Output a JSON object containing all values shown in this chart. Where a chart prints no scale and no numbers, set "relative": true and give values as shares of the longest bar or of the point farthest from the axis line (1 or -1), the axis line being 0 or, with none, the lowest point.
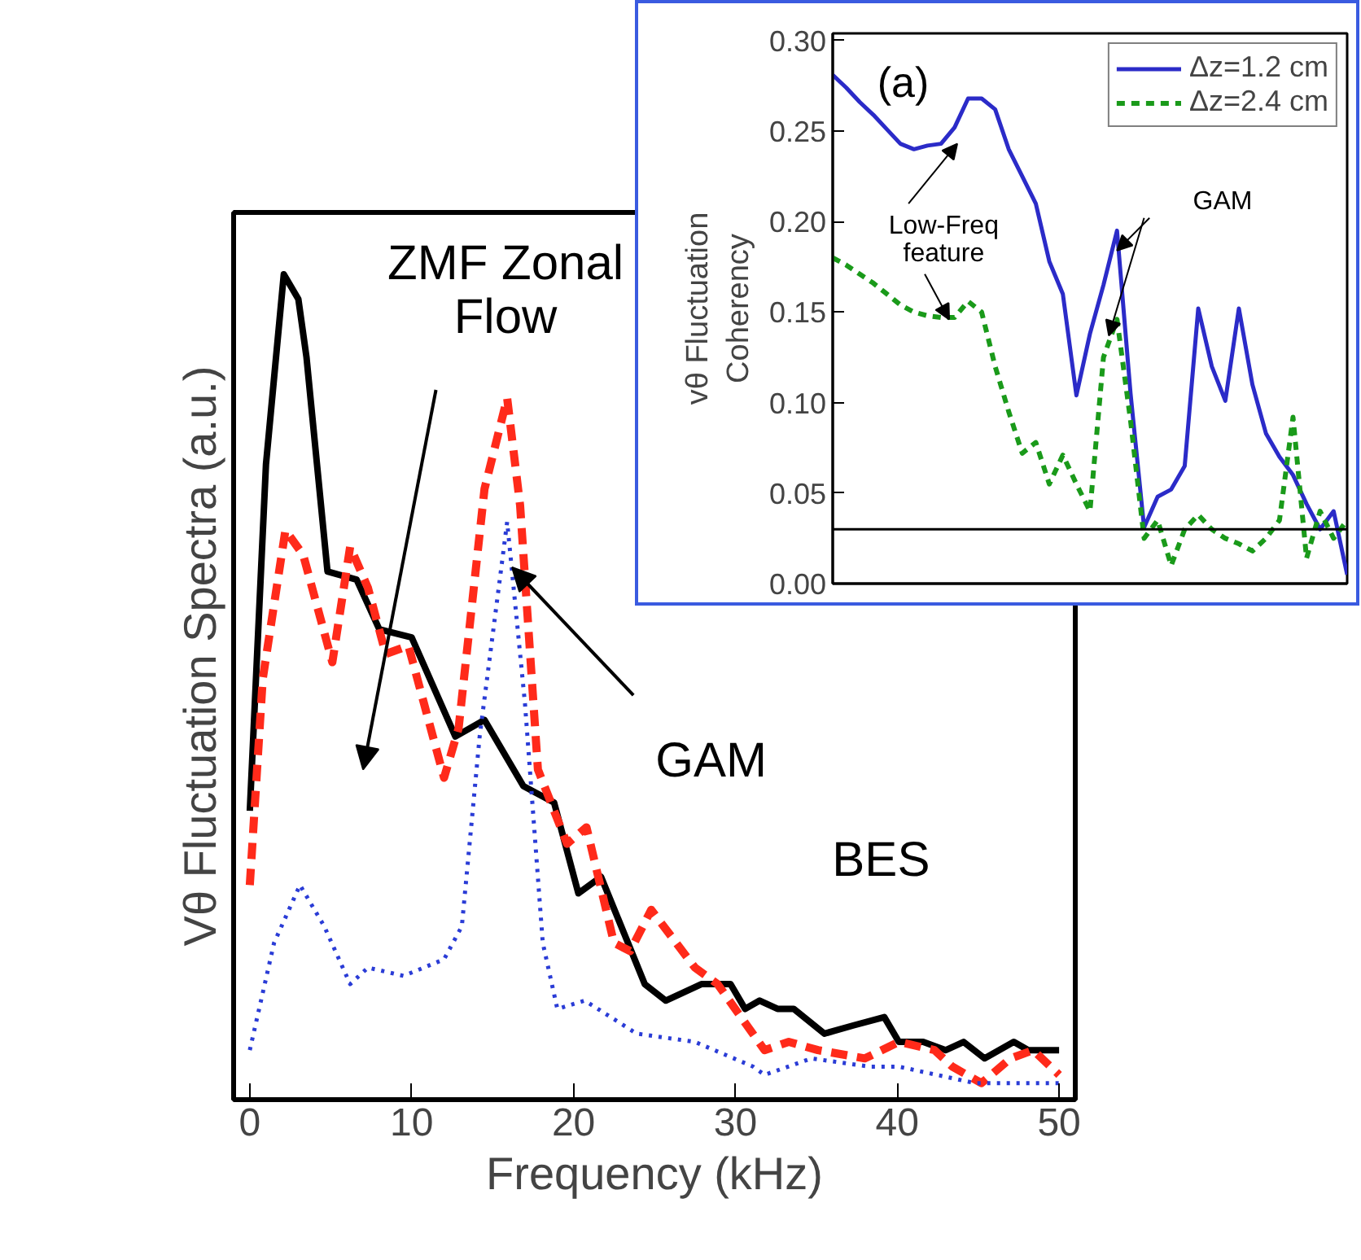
{
  "chart_data": [
    {
      "type": "line",
      "xlabel": "Frequency (kHz)",
      "ylabel": "Vθ Fluctuation Spectra (a.u.)",
      "relative": true,
      "xlim": [
        -1,
        51
      ],
      "xticks": [
        0,
        10,
        20,
        30,
        40,
        50
      ],
      "tick_labels": "x",
      "grid": false,
      "marker": "none",
      "annotations": [
        "ZMF Zonal\nFlow",
        "GAM",
        "BES"
      ],
      "series": [
        {
          "color": "#000000",
          "line_style": "solid",
          "x": [
            0,
            1.0,
            2.1,
            3.0,
            3.5,
            4.8,
            6.6,
            8.0,
            10.0,
            12.7,
            14.5,
            16.9,
            18.8,
            20.3,
            21.7,
            24.4,
            25.7,
            27.9,
            29.7,
            30.6,
            31.5,
            32.6,
            33.6,
            35.5,
            37.3,
            39.2,
            40.1,
            41.6,
            43.0,
            44.1,
            45.4,
            47.2,
            48.1,
            50
          ],
          "values": [
            0.35,
            0.77,
            1.0,
            0.97,
            0.9,
            0.64,
            0.63,
            0.57,
            0.56,
            0.44,
            0.46,
            0.38,
            0.36,
            0.25,
            0.27,
            0.14,
            0.12,
            0.14,
            0.14,
            0.11,
            0.12,
            0.11,
            0.11,
            0.08,
            0.09,
            0.1,
            0.07,
            0.07,
            0.06,
            0.07,
            0.05,
            0.07,
            0.06,
            0.06
          ]
        },
        {
          "color": "#ff2a1a",
          "line_style": "dashed",
          "x": [
            0,
            0.8,
            2.2,
            3.3,
            5.1,
            6.2,
            7.3,
            8.4,
            9.8,
            12.0,
            12.9,
            14.5,
            15.9,
            16.7,
            17.8,
            19.6,
            20.8,
            22.5,
            23.5,
            24.8,
            27.5,
            28.9,
            31.8,
            33.3,
            35.1,
            38.0,
            40.1,
            42.3,
            43.4,
            45.2,
            47.0,
            48.4,
            50
          ],
          "values": [
            0.26,
            0.51,
            0.69,
            0.66,
            0.53,
            0.67,
            0.62,
            0.54,
            0.55,
            0.39,
            0.45,
            0.74,
            0.85,
            0.72,
            0.4,
            0.31,
            0.33,
            0.19,
            0.18,
            0.23,
            0.16,
            0.14,
            0.06,
            0.07,
            0.06,
            0.05,
            0.07,
            0.06,
            0.04,
            0.02,
            0.05,
            0.06,
            0.03
          ]
        },
        {
          "color": "#2a3cd6",
          "line_style": "dotted",
          "x": [
            0,
            1.5,
            3.1,
            4.6,
            6.2,
            7.3,
            9.5,
            12.0,
            13.1,
            14.2,
            15.9,
            17.0,
            18.1,
            19.0,
            20.7,
            23.9,
            27.5,
            31.1,
            31.8,
            34.7,
            38.3,
            40.1,
            44.8,
            50
          ],
          "values": [
            0.06,
            0.19,
            0.26,
            0.21,
            0.14,
            0.16,
            0.15,
            0.17,
            0.21,
            0.44,
            0.7,
            0.48,
            0.19,
            0.11,
            0.12,
            0.08,
            0.07,
            0.04,
            0.03,
            0.05,
            0.04,
            0.04,
            0.02,
            0.02
          ]
        }
      ]
    },
    {
      "type": "line",
      "ylabel": "vθ Fluctuation\nCoherency",
      "categories": [
        null,
        null,
        null,
        null,
        null,
        null,
        null,
        null,
        null,
        null,
        null,
        null,
        null,
        null,
        null,
        null,
        null,
        null,
        null,
        null,
        null,
        null,
        null,
        null,
        null,
        null,
        null,
        null,
        null,
        null,
        null,
        null,
        null,
        null,
        null,
        null,
        null,
        null,
        null
      ],
      "ylim": [
        0,
        0.304
      ],
      "yticks": [
        {
          "value": 0,
          "label": "0.00"
        },
        {
          "value": 0.05,
          "label": "0.05"
        },
        {
          "value": 0.1,
          "label": "0.10"
        },
        {
          "value": 0.15,
          "label": "0.15"
        },
        {
          "value": 0.2,
          "label": "0.20"
        },
        {
          "value": 0.25,
          "label": "0.25"
        },
        {
          "value": 0.3,
          "label": "0.30"
        }
      ],
      "tick_labels": "y",
      "grid": false,
      "marker": "none",
      "legend": "top right",
      "ref_lines": [
        {
          "axis": "y",
          "value": 0.03,
          "color": "#000000"
        }
      ],
      "annotations": [
        "(a)",
        "Low-Freq\nfeature",
        "GAM"
      ],
      "series": [
        {
          "name": "Δz=1.2 cm",
          "color": "#2b2bc8",
          "line_style": "solid",
          "values": [
            0.281,
            0.274,
            0.266,
            0.259,
            0.251,
            0.243,
            0.24,
            0.242,
            0.243,
            0.252,
            0.268,
            0.268,
            0.262,
            0.24,
            0.225,
            0.21,
            0.178,
            0.16,
            0.104,
            0.138,
            0.165,
            0.195,
            0.105,
            0.031,
            0.048,
            0.052,
            0.065,
            0.152,
            0.12,
            0.101,
            0.152,
            0.11,
            0.083,
            0.07,
            0.06,
            0.044,
            0.03,
            0.04,
            0.005
          ]
        },
        {
          "name": "Δz=2.4 cm",
          "color": "#1a9a1a",
          "line_style": "dashed",
          "values": [
            0.18,
            0.176,
            0.171,
            0.166,
            0.16,
            0.154,
            0.15,
            0.148,
            0.147,
            0.147,
            0.156,
            0.15,
            0.12,
            0.095,
            0.072,
            0.078,
            0.055,
            0.071,
            0.055,
            0.04,
            0.125,
            0.146,
            0.09,
            0.025,
            0.035,
            0.01,
            0.03,
            0.038,
            0.03,
            0.025,
            0.022,
            0.018,
            0.025,
            0.035,
            0.092,
            0.014,
            0.04,
            0.025,
            0.035
          ]
        }
      ]
    }
  ]
}
